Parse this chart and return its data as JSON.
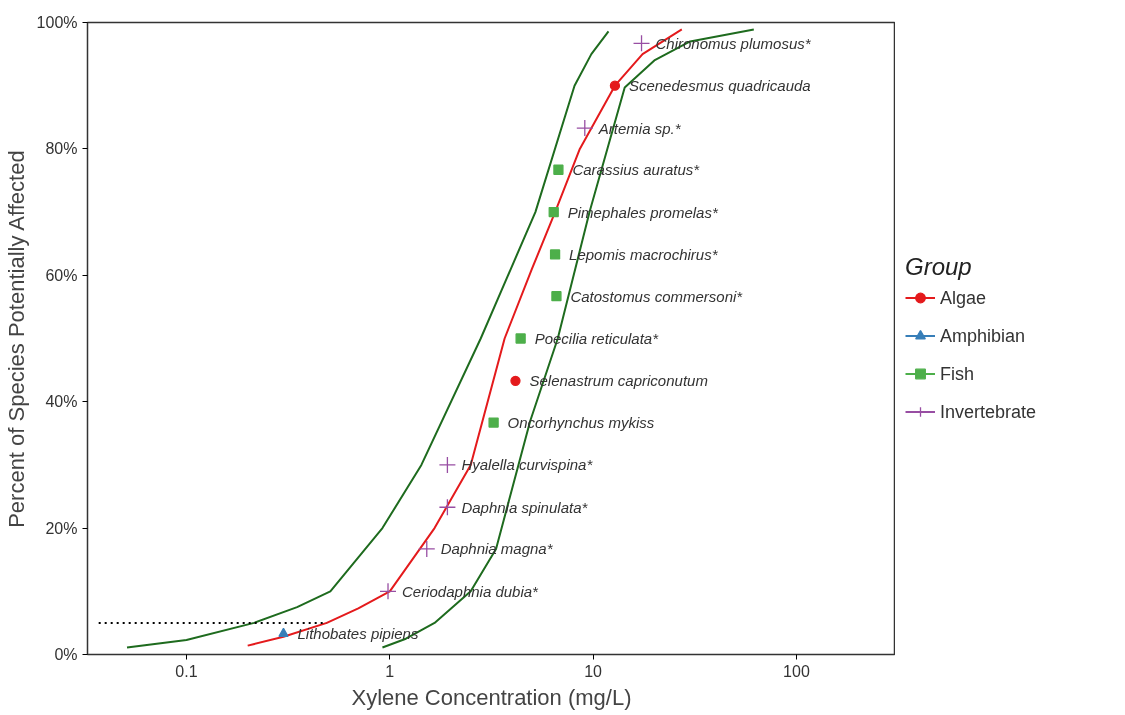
{
  "chart_data": {
    "type": "scatter",
    "xlabel": "Xylene Concentration (mg/L)",
    "ylabel": "Percent of Species Potentially Affected",
    "legend_title": "Group",
    "legend": "right",
    "grid": false,
    "log": "x",
    "xlim": [
      0.0326,
      307
    ],
    "xticks": [
      0.1,
      1,
      10,
      100
    ],
    "ylim": [
      0,
      100
    ],
    "yticks": [
      {
        "value": 0,
        "label": "0%"
      },
      {
        "value": 20,
        "label": "20%"
      },
      {
        "value": 40,
        "label": "40%"
      },
      {
        "value": 60,
        "label": "60%"
      },
      {
        "value": 80,
        "label": "80%"
      },
      {
        "value": 100,
        "label": "100%"
      }
    ],
    "series": [
      {
        "type": "line",
        "color": "#e41a1c",
        "line_style": "solid",
        "marker": "none",
        "x": [
          0.2,
          0.3,
          0.49,
          0.7,
          1.0,
          1.66,
          2.5,
          3.67,
          5.0,
          6.5,
          8.6,
          12.8,
          17.5,
          27.3
        ],
        "values": [
          1.4,
          2.8,
          5,
          7.3,
          10,
          20,
          30,
          50,
          61,
          70,
          80,
          90,
          95,
          98.9
        ]
      },
      {
        "type": "line",
        "color": "#1e6b1e",
        "line_style": "solid",
        "marker": "none",
        "x": [
          0.051,
          0.1,
          0.215,
          0.35,
          0.51,
          0.92,
          1.43,
          2.8,
          5.2,
          8.1,
          9.8,
          11.9
        ],
        "values": [
          1.1,
          2.3,
          5,
          7.5,
          10,
          20,
          30,
          50,
          70,
          90,
          95,
          98.6
        ]
      },
      {
        "type": "line",
        "color": "#1e6b1e",
        "line_style": "solid",
        "marker": "none",
        "x": [
          0.92,
          1.2,
          1.66,
          2.5,
          3.33,
          4.9,
          6.7,
          9.6,
          14.3,
          20,
          30,
          61.7
        ],
        "values": [
          1.1,
          2.5,
          5,
          10,
          16.7,
          36.9,
          50,
          70,
          89.7,
          94,
          97,
          98.9
        ]
      },
      {
        "type": "line",
        "color": "#000000",
        "line_style": "dotted",
        "marker": "none",
        "x": [
          0.037,
          0.49
        ],
        "values": [
          5,
          5
        ]
      },
      {
        "name": "Algae",
        "color": "#e41a1c",
        "marker": "circle",
        "x": [
          4.15,
          12.8
        ],
        "values": [
          43.3,
          90
        ]
      },
      {
        "name": "Amphibian",
        "color": "#377eb8",
        "marker": "triangle",
        "x": [
          0.3
        ],
        "values": [
          3.3
        ]
      },
      {
        "name": "Fish",
        "color": "#4daf4a",
        "marker": "square",
        "x": [
          3.24,
          4.4,
          6.6,
          6.5,
          6.4,
          6.75
        ],
        "values": [
          36.7,
          50,
          56.7,
          63.3,
          70,
          76.7
        ]
      },
      {
        "name": "Invertebrate",
        "color": "#984ea3",
        "marker": "cross",
        "x": [
          0.98,
          1.52,
          1.92,
          1.92,
          9.1,
          17.3
        ],
        "values": [
          10,
          16.7,
          23.3,
          30,
          83.3,
          96.7
        ]
      }
    ],
    "annotations": [
      {
        "text": "Lithobates pipiens",
        "x": 0.3,
        "y": 3.3
      },
      {
        "text": "Ceriodaphnia dubia*",
        "x": 0.98,
        "y": 10
      },
      {
        "text": "Daphnia magna*",
        "x": 1.52,
        "y": 16.7
      },
      {
        "text": "Daphnia spinulata*",
        "x": 1.92,
        "y": 23.3
      },
      {
        "text": "Hyalella curvispina*",
        "x": 1.92,
        "y": 30
      },
      {
        "text": "Oncorhynchus mykiss",
        "x": 3.24,
        "y": 36.7
      },
      {
        "text": "Selenastrum capriconutum",
        "x": 4.15,
        "y": 43.3
      },
      {
        "text": "Poecilia reticulata*",
        "x": 4.4,
        "y": 50
      },
      {
        "text": "Catostomus commersoni*",
        "x": 6.6,
        "y": 56.7
      },
      {
        "text": "Lepomis macrochirus*",
        "x": 6.5,
        "y": 63.3
      },
      {
        "text": "Pimephales promelas*",
        "x": 6.4,
        "y": 70
      },
      {
        "text": "Carassius auratus*",
        "x": 6.75,
        "y": 76.7
      },
      {
        "text": "Artemia sp.*",
        "x": 9.1,
        "y": 83.3
      },
      {
        "text": "Scenedesmus quadricauda",
        "x": 12.8,
        "y": 90
      },
      {
        "text": "Chironomus plumosus*",
        "x": 17.3,
        "y": 96.7
      }
    ]
  }
}
